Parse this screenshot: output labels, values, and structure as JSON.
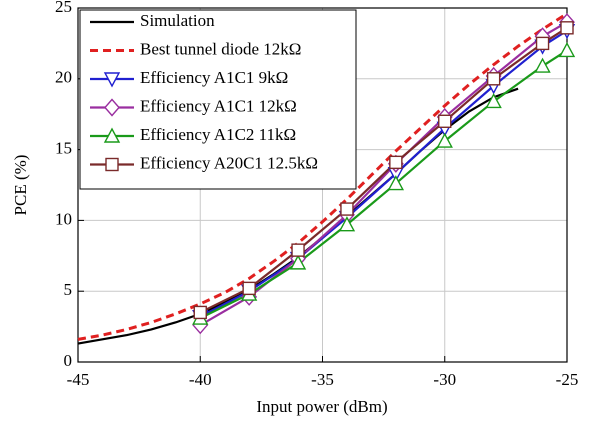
{
  "chart_data": {
    "type": "line",
    "xlabel": "Input power (dBm)",
    "ylabel": "PCE (%)",
    "xlim": [
      -45,
      -25
    ],
    "ylim": [
      0,
      25
    ],
    "xticks": [
      -45,
      -40,
      -35,
      -30,
      -25
    ],
    "yticks": [
      0,
      5,
      10,
      15,
      20,
      25
    ],
    "grid": true,
    "legend": "upper left",
    "series": [
      {
        "name": "Simulation",
        "color": "#000000",
        "dash": false,
        "marker": "none",
        "x": [
          -45,
          -44,
          -43,
          -42,
          -41,
          -40,
          -39,
          -38,
          -37,
          -36,
          -35,
          -34,
          -33,
          -32,
          -31,
          -30,
          -29,
          -28,
          -27
        ],
        "values": [
          1.3,
          1.6,
          1.9,
          2.3,
          2.8,
          3.4,
          4.2,
          5.1,
          6.2,
          7.4,
          8.8,
          10.3,
          11.8,
          13.3,
          14.9,
          16.4,
          17.7,
          18.7,
          19.3
        ]
      },
      {
        "name": "Best tunnel diode 12kΩ",
        "color": "#e02020",
        "dash": true,
        "marker": "none",
        "x": [
          -45,
          -44,
          -43,
          -42,
          -41,
          -40,
          -39,
          -38,
          -37,
          -36,
          -35,
          -34,
          -33,
          -32,
          -31,
          -30,
          -29,
          -28,
          -27,
          -26,
          -25
        ],
        "values": [
          1.6,
          1.9,
          2.3,
          2.8,
          3.4,
          4.1,
          4.9,
          5.9,
          7.1,
          8.4,
          9.9,
          11.5,
          13.2,
          14.9,
          16.5,
          18.1,
          19.6,
          21.0,
          22.3,
          23.5,
          24.6
        ]
      },
      {
        "name": "Efficiency A1C1 9kΩ",
        "color": "#2020d0",
        "dash": false,
        "marker": "triangle-down",
        "x": [
          -40,
          -38,
          -36,
          -34,
          -32,
          -30,
          -28,
          -26,
          -25
        ],
        "values": [
          3.2,
          5.0,
          7.3,
          10.2,
          13.3,
          16.5,
          19.5,
          22.3,
          23.4
        ]
      },
      {
        "name": "Efficiency A1C1 12kΩ",
        "color": "#9a2ea0",
        "dash": false,
        "marker": "diamond",
        "x": [
          -40,
          -38,
          -36,
          -34,
          -32,
          -30,
          -28,
          -26,
          -25
        ],
        "values": [
          2.6,
          4.6,
          7.3,
          10.4,
          14.0,
          17.3,
          20.2,
          23.0,
          24.0
        ]
      },
      {
        "name": "Efficiency A1C2 11kΩ",
        "color": "#1a9a1a",
        "dash": false,
        "marker": "triangle-up",
        "x": [
          -40,
          -38,
          -36,
          -34,
          -32,
          -30,
          -28,
          -26,
          -25
        ],
        "values": [
          3.1,
          4.8,
          7.0,
          9.7,
          12.6,
          15.6,
          18.4,
          20.9,
          22.0
        ]
      },
      {
        "name": "Efficiency A20C1 12.5kΩ",
        "color": "#7a2a2a",
        "dash": false,
        "marker": "square",
        "x": [
          -40,
          -38,
          -36,
          -34,
          -32,
          -30,
          -28,
          -26,
          -25
        ],
        "values": [
          3.5,
          5.2,
          7.9,
          10.8,
          14.1,
          17.0,
          20.0,
          22.5,
          23.6
        ]
      }
    ]
  }
}
